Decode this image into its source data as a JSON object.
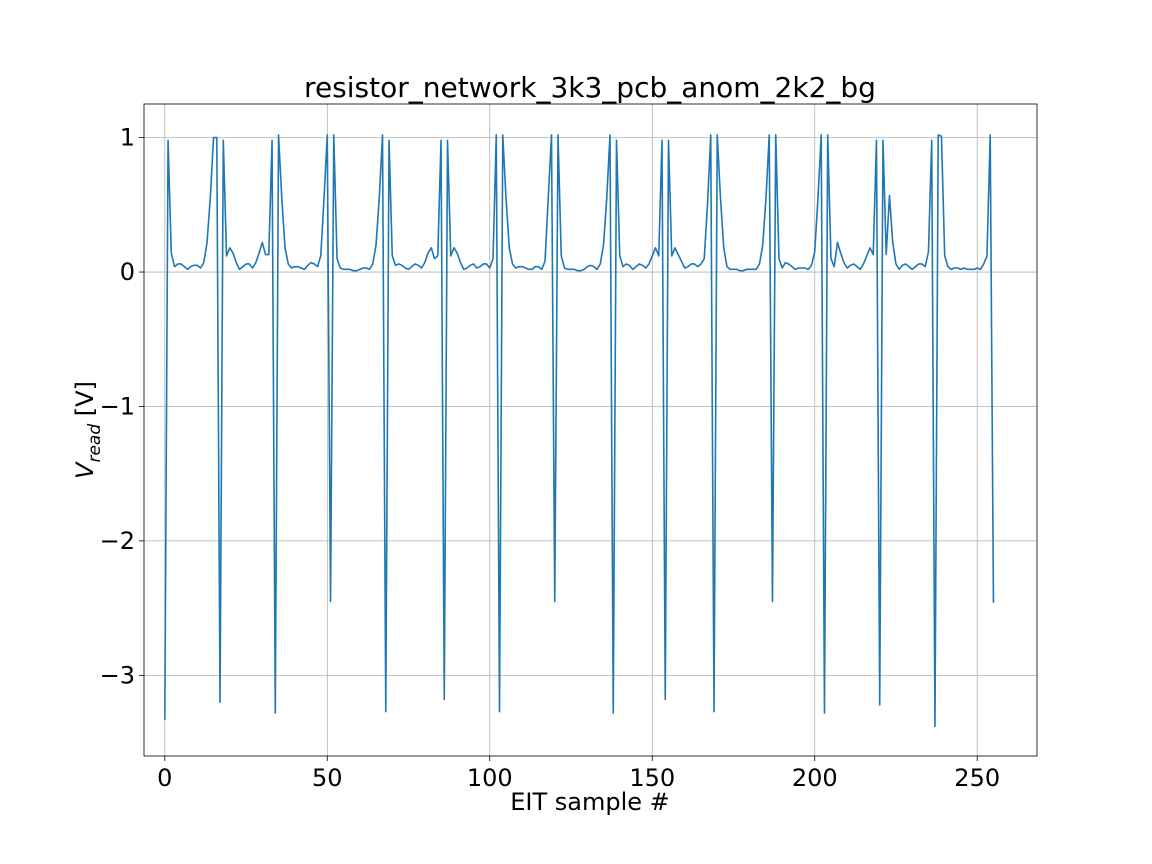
{
  "chart_data": {
    "type": "line",
    "title": "resistor_network_3k3_pcb_anom_2k2_bg",
    "xlabel": "EIT sample #",
    "ylabel_main": "V",
    "ylabel_sub": "read",
    "ylabel_unit": " [V]",
    "xlim": [
      -6.4,
      268.4
    ],
    "ylim": [
      -3.6,
      1.25
    ],
    "xticks": [
      0,
      50,
      100,
      150,
      200,
      250
    ],
    "yticks": [
      -3,
      -2,
      -1,
      0,
      1
    ],
    "xtick_labels": [
      "0",
      "50",
      "100",
      "150",
      "200",
      "250"
    ],
    "ytick_labels": [
      "−3",
      "−2",
      "−1",
      "0",
      "1"
    ],
    "grid": true,
    "series": [
      {
        "color": "#1f77b4",
        "values": [
          -3.33,
          0.98,
          0.14,
          0.04,
          0.06,
          0.06,
          0.04,
          0.02,
          0.04,
          0.05,
          0.05,
          0.03,
          0.07,
          0.22,
          0.55,
          1.0,
          1.0,
          -3.2,
          0.98,
          0.12,
          0.18,
          0.14,
          0.07,
          0.02,
          0.04,
          0.06,
          0.06,
          0.03,
          0.07,
          0.14,
          0.22,
          0.13,
          0.13,
          0.98,
          -3.28,
          1.02,
          0.55,
          0.18,
          0.06,
          0.03,
          0.04,
          0.04,
          0.03,
          0.02,
          0.05,
          0.07,
          0.06,
          0.04,
          0.12,
          0.55,
          1.02,
          -2.45,
          1.02,
          0.1,
          0.03,
          0.02,
          0.02,
          0.02,
          0.01,
          0.01,
          0.02,
          0.03,
          0.03,
          0.02,
          0.06,
          0.2,
          0.55,
          1.02,
          -3.27,
          0.98,
          0.12,
          0.05,
          0.06,
          0.05,
          0.03,
          0.02,
          0.04,
          0.06,
          0.05,
          0.03,
          0.07,
          0.14,
          0.18,
          0.1,
          0.12,
          0.98,
          -3.18,
          0.98,
          0.12,
          0.18,
          0.14,
          0.07,
          0.02,
          0.03,
          0.05,
          0.06,
          0.03,
          0.04,
          0.06,
          0.06,
          0.03,
          0.1,
          1.02,
          -3.27,
          1.02,
          0.55,
          0.18,
          0.06,
          0.03,
          0.04,
          0.04,
          0.03,
          0.02,
          0.02,
          0.04,
          0.04,
          0.02,
          0.08,
          0.55,
          1.02,
          -2.45,
          1.02,
          0.12,
          0.03,
          0.02,
          0.02,
          0.02,
          0.01,
          0.01,
          0.02,
          0.04,
          0.05,
          0.04,
          0.02,
          0.06,
          0.2,
          0.55,
          1.02,
          -3.28,
          0.98,
          0.12,
          0.04,
          0.06,
          0.05,
          0.02,
          0.04,
          0.06,
          0.05,
          0.03,
          0.06,
          0.12,
          0.18,
          0.12,
          0.98,
          -3.18,
          0.98,
          0.12,
          0.18,
          0.13,
          0.08,
          0.03,
          0.04,
          0.06,
          0.06,
          0.04,
          0.06,
          0.1,
          0.5,
          1.02,
          -3.27,
          1.02,
          0.55,
          0.18,
          0.04,
          0.02,
          0.02,
          0.02,
          0.01,
          0.01,
          0.02,
          0.02,
          0.02,
          0.02,
          0.06,
          0.2,
          0.55,
          1.02,
          -2.45,
          1.02,
          0.1,
          0.03,
          0.07,
          0.06,
          0.04,
          0.02,
          0.03,
          0.03,
          0.03,
          0.02,
          0.05,
          0.15,
          0.55,
          1.02,
          -3.28,
          1.02,
          0.1,
          0.04,
          0.22,
          0.14,
          0.07,
          0.03,
          0.05,
          0.06,
          0.04,
          0.02,
          0.06,
          0.12,
          0.18,
          0.13,
          0.98,
          -3.22,
          0.98,
          0.13,
          0.57,
          0.22,
          0.06,
          0.02,
          0.05,
          0.06,
          0.04,
          0.02,
          0.04,
          0.06,
          0.06,
          0.04,
          0.15,
          0.98,
          -3.38,
          1.02,
          1.01,
          0.12,
          0.04,
          0.02,
          0.03,
          0.03,
          0.02,
          0.03,
          0.02,
          0.02,
          0.02,
          0.03,
          0.02,
          0.06,
          0.12,
          1.02,
          -2.46
        ]
      }
    ]
  }
}
